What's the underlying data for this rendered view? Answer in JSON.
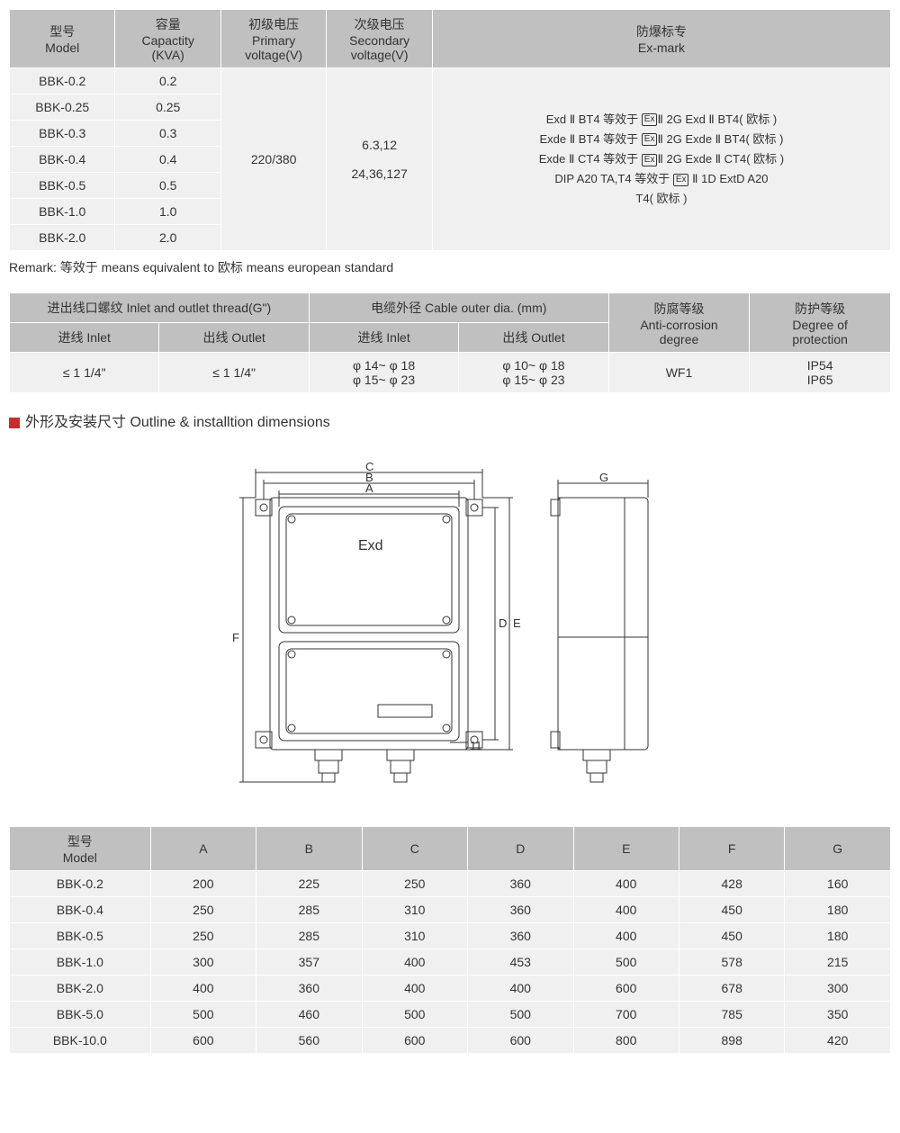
{
  "table1": {
    "headers": {
      "model": "型号\nModel",
      "capacity": "容量\nCapactity\n(KVA)",
      "primary": "初级电压\nPrimary\nvoltage(V)",
      "secondary": "次级电压\nSecondary\nvoltage(V)",
      "exmark": "防爆标专\nEx-mark"
    },
    "models": [
      "BBK-0.2",
      "BBK-0.25",
      "BBK-0.3",
      "BBK-0.4",
      "BBK-0.5",
      "BBK-1.0",
      "BBK-2.0"
    ],
    "capacities": [
      "0.2",
      "0.25",
      "0.3",
      "0.4",
      "0.5",
      "1.0",
      "2.0"
    ],
    "primary": "220/380",
    "secondary_l1": "6.3,12",
    "secondary_l2": "24,36,127",
    "ex_lines": [
      "Exd Ⅱ BT4 等效于 ⟨Ex⟩Ⅱ 2G Exd Ⅱ BT4( 欧标 )",
      "Exde Ⅱ BT4 等效于 ⟨Ex⟩Ⅱ 2G Exde Ⅱ BT4( 欧标 )",
      "Exde Ⅱ CT4 等效于 ⟨Ex⟩Ⅱ 2G Exde Ⅱ CT4( 欧标 )",
      "DIP A20 TA,T4 等效于 ⟨Ex⟩ Ⅱ 1D ExtD A20",
      "T4( 欧标 )"
    ]
  },
  "remark": "Remark: 等效于 means equivalent to   欧标 means european standard",
  "table2": {
    "h_thread": "进出线口螺纹 Inlet and outlet thread(G\")",
    "h_cable": "电缆外径 Cable outer dia. (mm)",
    "h_anti": "防腐等级\nAnti-corrosion\ndegree",
    "h_prot": "防护等级\nDegree of\nprotection",
    "h_inlet": "进线 Inlet",
    "h_outlet": "出线 Outlet",
    "thread_inlet": "≤ 1 1/4\"",
    "thread_outlet": "≤ 1 1/4\"",
    "cable_inlet": "φ 14~ φ 18\nφ 15~ φ 23",
    "cable_outlet": "φ 10~ φ 18\nφ 15~ φ 23",
    "anti": "WF1",
    "prot": "IP54\nIP65"
  },
  "section_title": "外形及安装尺寸 Outline & installtion dimensions",
  "diagram": {
    "label_exd": "Exd",
    "dim_a": "A",
    "dim_b": "B",
    "dim_c": "C",
    "dim_d": "D",
    "dim_e": "E",
    "dim_f": "F",
    "dim_g": "G",
    "dim_11": "11"
  },
  "table3": {
    "h_model": "型号\nModel",
    "cols": [
      "A",
      "B",
      "C",
      "D",
      "E",
      "F",
      "G"
    ],
    "rows": [
      {
        "m": "BBK-0.2",
        "v": [
          "200",
          "225",
          "250",
          "360",
          "400",
          "428",
          "160"
        ]
      },
      {
        "m": "BBK-0.4",
        "v": [
          "250",
          "285",
          "310",
          "360",
          "400",
          "450",
          "180"
        ]
      },
      {
        "m": "BBK-0.5",
        "v": [
          "250",
          "285",
          "310",
          "360",
          "400",
          "450",
          "180"
        ]
      },
      {
        "m": "BBK-1.0",
        "v": [
          "300",
          "357",
          "400",
          "453",
          "500",
          "578",
          "215"
        ]
      },
      {
        "m": "BBK-2.0",
        "v": [
          "400",
          "360",
          "400",
          "400",
          "600",
          "678",
          "300"
        ]
      },
      {
        "m": "BBK-5.0",
        "v": [
          "500",
          "460",
          "500",
          "500",
          "700",
          "785",
          "350"
        ]
      },
      {
        "m": "BBK-10.0",
        "v": [
          "600",
          "560",
          "600",
          "600",
          "800",
          "898",
          "420"
        ]
      }
    ]
  }
}
